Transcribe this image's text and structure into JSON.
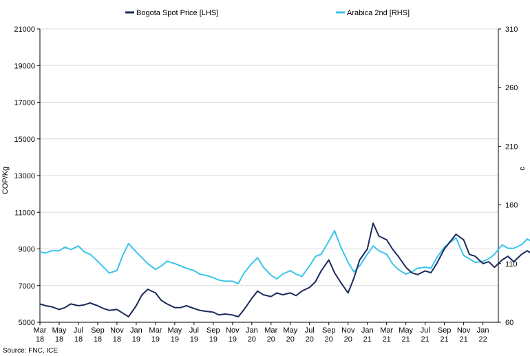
{
  "chart_data": {
    "type": "line",
    "title": "",
    "legend": {
      "placement": "top-center",
      "entries": [
        "Bogota Spot Price [LHS]",
        "Arabica 2nd [RHS]"
      ]
    },
    "ylabel_left": "COP/Kg",
    "ylabel_right": "c",
    "ylim_left": [
      5000,
      21000
    ],
    "ylim_right": [
      60,
      310
    ],
    "yticks_left": [
      "21000",
      "19000",
      "17000",
      "15000",
      "13000",
      "11000",
      "9000",
      "7000",
      "5000"
    ],
    "yticks_right": [
      "310",
      "260",
      "210",
      "160",
      "110",
      "60"
    ],
    "xticks": [
      {
        "month": "Mar",
        "year": "18"
      },
      {
        "month": "May",
        "year": "18"
      },
      {
        "month": "Jul",
        "year": "18"
      },
      {
        "month": "Sep",
        "year": "18"
      },
      {
        "month": "Nov",
        "year": "18"
      },
      {
        "month": "Jan",
        "year": "19"
      },
      {
        "month": "Mar",
        "year": "19"
      },
      {
        "month": "May",
        "year": "19"
      },
      {
        "month": "Jul",
        "year": "19"
      },
      {
        "month": "Sep",
        "year": "19"
      },
      {
        "month": "Nov",
        "year": "19"
      },
      {
        "month": "Jan",
        "year": "20"
      },
      {
        "month": "Mar",
        "year": "20"
      },
      {
        "month": "May",
        "year": "20"
      },
      {
        "month": "Jul",
        "year": "20"
      },
      {
        "month": "Sep",
        "year": "20"
      },
      {
        "month": "Nov",
        "year": "20"
      },
      {
        "month": "Jan",
        "year": "21"
      },
      {
        "month": "Mar",
        "year": "21"
      },
      {
        "month": "May",
        "year": "21"
      },
      {
        "month": "Jul",
        "year": "21"
      },
      {
        "month": "Sep",
        "year": "21"
      },
      {
        "month": "Nov",
        "year": "21"
      },
      {
        "month": "Jan",
        "year": "22"
      }
    ],
    "grid": true,
    "series": [
      {
        "name": "Bogota Spot Price [LHS]",
        "axis": "left",
        "color": "#1b2a5c",
        "points": [
          [
            0.0,
            6000
          ],
          [
            0.3,
            5900
          ],
          [
            0.6,
            5850
          ],
          [
            1.0,
            5700
          ],
          [
            1.3,
            5800
          ],
          [
            1.6,
            6000
          ],
          [
            2.0,
            5900
          ],
          [
            2.3,
            5950
          ],
          [
            2.6,
            6050
          ],
          [
            3.0,
            5900
          ],
          [
            3.3,
            5750
          ],
          [
            3.6,
            5650
          ],
          [
            4.0,
            5700
          ],
          [
            4.3,
            5500
          ],
          [
            4.6,
            5300
          ],
          [
            5.0,
            5900
          ],
          [
            5.3,
            6500
          ],
          [
            5.6,
            6800
          ],
          [
            6.0,
            6600
          ],
          [
            6.3,
            6200
          ],
          [
            6.6,
            6000
          ],
          [
            7.0,
            5800
          ],
          [
            7.3,
            5800
          ],
          [
            7.6,
            5900
          ],
          [
            8.0,
            5750
          ],
          [
            8.3,
            5650
          ],
          [
            8.6,
            5600
          ],
          [
            9.0,
            5550
          ],
          [
            9.3,
            5400
          ],
          [
            9.6,
            5450
          ],
          [
            10.0,
            5400
          ],
          [
            10.3,
            5300
          ],
          [
            10.6,
            5700
          ],
          [
            11.0,
            6300
          ],
          [
            11.3,
            6700
          ],
          [
            11.6,
            6500
          ],
          [
            12.0,
            6400
          ],
          [
            12.3,
            6600
          ],
          [
            12.6,
            6500
          ],
          [
            13.0,
            6600
          ],
          [
            13.3,
            6450
          ],
          [
            13.6,
            6700
          ],
          [
            14.0,
            6900
          ],
          [
            14.3,
            7200
          ],
          [
            14.6,
            7800
          ],
          [
            15.0,
            8400
          ],
          [
            15.3,
            7700
          ],
          [
            15.6,
            7200
          ],
          [
            16.0,
            6600
          ],
          [
            16.3,
            7400
          ],
          [
            16.6,
            8400
          ],
          [
            17.0,
            9000
          ],
          [
            17.3,
            10400
          ],
          [
            17.6,
            9700
          ],
          [
            18.0,
            9500
          ],
          [
            18.3,
            9000
          ],
          [
            18.6,
            8600
          ],
          [
            19.0,
            8000
          ],
          [
            19.3,
            7700
          ],
          [
            19.6,
            7600
          ],
          [
            20.0,
            7800
          ],
          [
            20.3,
            7700
          ],
          [
            20.6,
            8200
          ],
          [
            21.0,
            9000
          ],
          [
            21.3,
            9400
          ],
          [
            21.6,
            9800
          ],
          [
            22.0,
            9500
          ],
          [
            22.3,
            8700
          ],
          [
            22.6,
            8600
          ],
          [
            23.0,
            8200
          ],
          [
            23.3,
            8300
          ],
          [
            23.6,
            8000
          ],
          [
            24.0,
            8400
          ],
          [
            24.3,
            8600
          ],
          [
            24.6,
            8300
          ],
          [
            25.0,
            8700
          ],
          [
            25.3,
            8900
          ],
          [
            25.6,
            8700
          ],
          [
            26.0,
            9300
          ],
          [
            26.3,
            9100
          ],
          [
            26.6,
            9300
          ],
          [
            27.0,
            9500
          ],
          [
            27.3,
            9200
          ],
          [
            27.6,
            9600
          ],
          [
            28.0,
            10500
          ],
          [
            28.3,
            11200
          ],
          [
            28.6,
            11000
          ],
          [
            29.0,
            11500
          ],
          [
            29.3,
            11300
          ],
          [
            29.6,
            11800
          ],
          [
            30.0,
            12400
          ],
          [
            30.15,
            15300
          ],
          [
            30.3,
            13600
          ],
          [
            30.6,
            13300
          ],
          [
            31.0,
            13200
          ],
          [
            31.3,
            14200
          ],
          [
            31.6,
            13800
          ],
          [
            32.0,
            14500
          ],
          [
            32.3,
            15200
          ],
          [
            32.6,
            15000
          ],
          [
            33.0,
            16000
          ],
          [
            33.3,
            17500
          ],
          [
            33.6,
            17100
          ],
          [
            34.0,
            17700
          ],
          [
            34.3,
            17200
          ],
          [
            34.6,
            16700
          ],
          [
            35.0,
            17300
          ],
          [
            35.3,
            17700
          ],
          [
            35.6,
            17000
          ],
          [
            35.9,
            17500
          ],
          [
            36.2,
            18500
          ],
          [
            36.5,
            17800
          ],
          [
            36.8,
            17300
          ]
        ]
      },
      {
        "name": "Arabica 2nd [RHS]",
        "axis": "right",
        "color": "#39c4ec",
        "points": [
          [
            0.0,
            120
          ],
          [
            0.3,
            119
          ],
          [
            0.6,
            121
          ],
          [
            1.0,
            121
          ],
          [
            1.3,
            124
          ],
          [
            1.6,
            122
          ],
          [
            2.0,
            125
          ],
          [
            2.3,
            120
          ],
          [
            2.6,
            118
          ],
          [
            3.0,
            112
          ],
          [
            3.3,
            107
          ],
          [
            3.6,
            102
          ],
          [
            4.0,
            104
          ],
          [
            4.3,
            117
          ],
          [
            4.6,
            127
          ],
          [
            5.0,
            120
          ],
          [
            5.3,
            115
          ],
          [
            5.6,
            110
          ],
          [
            6.0,
            105
          ],
          [
            6.3,
            108
          ],
          [
            6.6,
            112
          ],
          [
            7.0,
            110
          ],
          [
            7.3,
            108
          ],
          [
            7.6,
            106
          ],
          [
            8.0,
            104
          ],
          [
            8.3,
            101
          ],
          [
            8.6,
            100
          ],
          [
            9.0,
            98
          ],
          [
            9.3,
            96
          ],
          [
            9.6,
            95
          ],
          [
            10.0,
            95
          ],
          [
            10.3,
            93
          ],
          [
            10.6,
            102
          ],
          [
            11.0,
            110
          ],
          [
            11.3,
            115
          ],
          [
            11.6,
            107
          ],
          [
            12.0,
            100
          ],
          [
            12.3,
            97
          ],
          [
            12.6,
            101
          ],
          [
            13.0,
            104
          ],
          [
            13.3,
            101
          ],
          [
            13.6,
            99
          ],
          [
            14.0,
            108
          ],
          [
            14.3,
            116
          ],
          [
            14.6,
            118
          ],
          [
            15.0,
            129
          ],
          [
            15.3,
            138
          ],
          [
            15.6,
            125
          ],
          [
            16.0,
            111
          ],
          [
            16.3,
            103
          ],
          [
            16.6,
            108
          ],
          [
            17.0,
            118
          ],
          [
            17.3,
            125
          ],
          [
            17.6,
            121
          ],
          [
            18.0,
            118
          ],
          [
            18.3,
            110
          ],
          [
            18.6,
            105
          ],
          [
            19.0,
            101
          ],
          [
            19.3,
            103
          ],
          [
            19.6,
            106
          ],
          [
            20.0,
            107
          ],
          [
            20.3,
            106
          ],
          [
            20.6,
            115
          ],
          [
            21.0,
            124
          ],
          [
            21.3,
            128
          ],
          [
            21.6,
            132
          ],
          [
            22.0,
            117
          ],
          [
            22.3,
            114
          ],
          [
            22.6,
            111
          ],
          [
            23.0,
            112
          ],
          [
            23.3,
            114
          ],
          [
            23.6,
            118
          ],
          [
            24.0,
            126
          ],
          [
            24.3,
            123
          ],
          [
            24.6,
            123
          ],
          [
            25.0,
            126
          ],
          [
            25.3,
            131
          ],
          [
            25.6,
            128
          ],
          [
            26.0,
            126
          ],
          [
            26.3,
            133
          ],
          [
            26.6,
            135
          ],
          [
            27.0,
            126
          ],
          [
            27.3,
            126
          ],
          [
            27.6,
            130
          ],
          [
            28.0,
            140
          ],
          [
            28.3,
            146
          ],
          [
            28.6,
            150
          ],
          [
            29.0,
            148
          ],
          [
            29.3,
            152
          ],
          [
            29.6,
            150
          ],
          [
            30.0,
            155
          ],
          [
            30.15,
            183
          ],
          [
            30.3,
            203
          ],
          [
            30.6,
            193
          ],
          [
            31.0,
            185
          ],
          [
            31.3,
            193
          ],
          [
            31.6,
            182
          ],
          [
            32.0,
            197
          ],
          [
            32.3,
            199
          ],
          [
            32.6,
            213
          ],
          [
            33.0,
            215
          ],
          [
            33.3,
            230
          ],
          [
            33.6,
            240
          ],
          [
            34.0,
            236
          ],
          [
            34.3,
            244
          ],
          [
            34.6,
            238
          ],
          [
            35.0,
            250
          ],
          [
            35.3,
            242
          ],
          [
            35.6,
            239
          ],
          [
            35.9,
            244
          ],
          [
            36.2,
            253
          ],
          [
            36.5,
            244
          ],
          [
            36.8,
            240
          ]
        ]
      }
    ],
    "source": "Source: FNC, ICE"
  }
}
